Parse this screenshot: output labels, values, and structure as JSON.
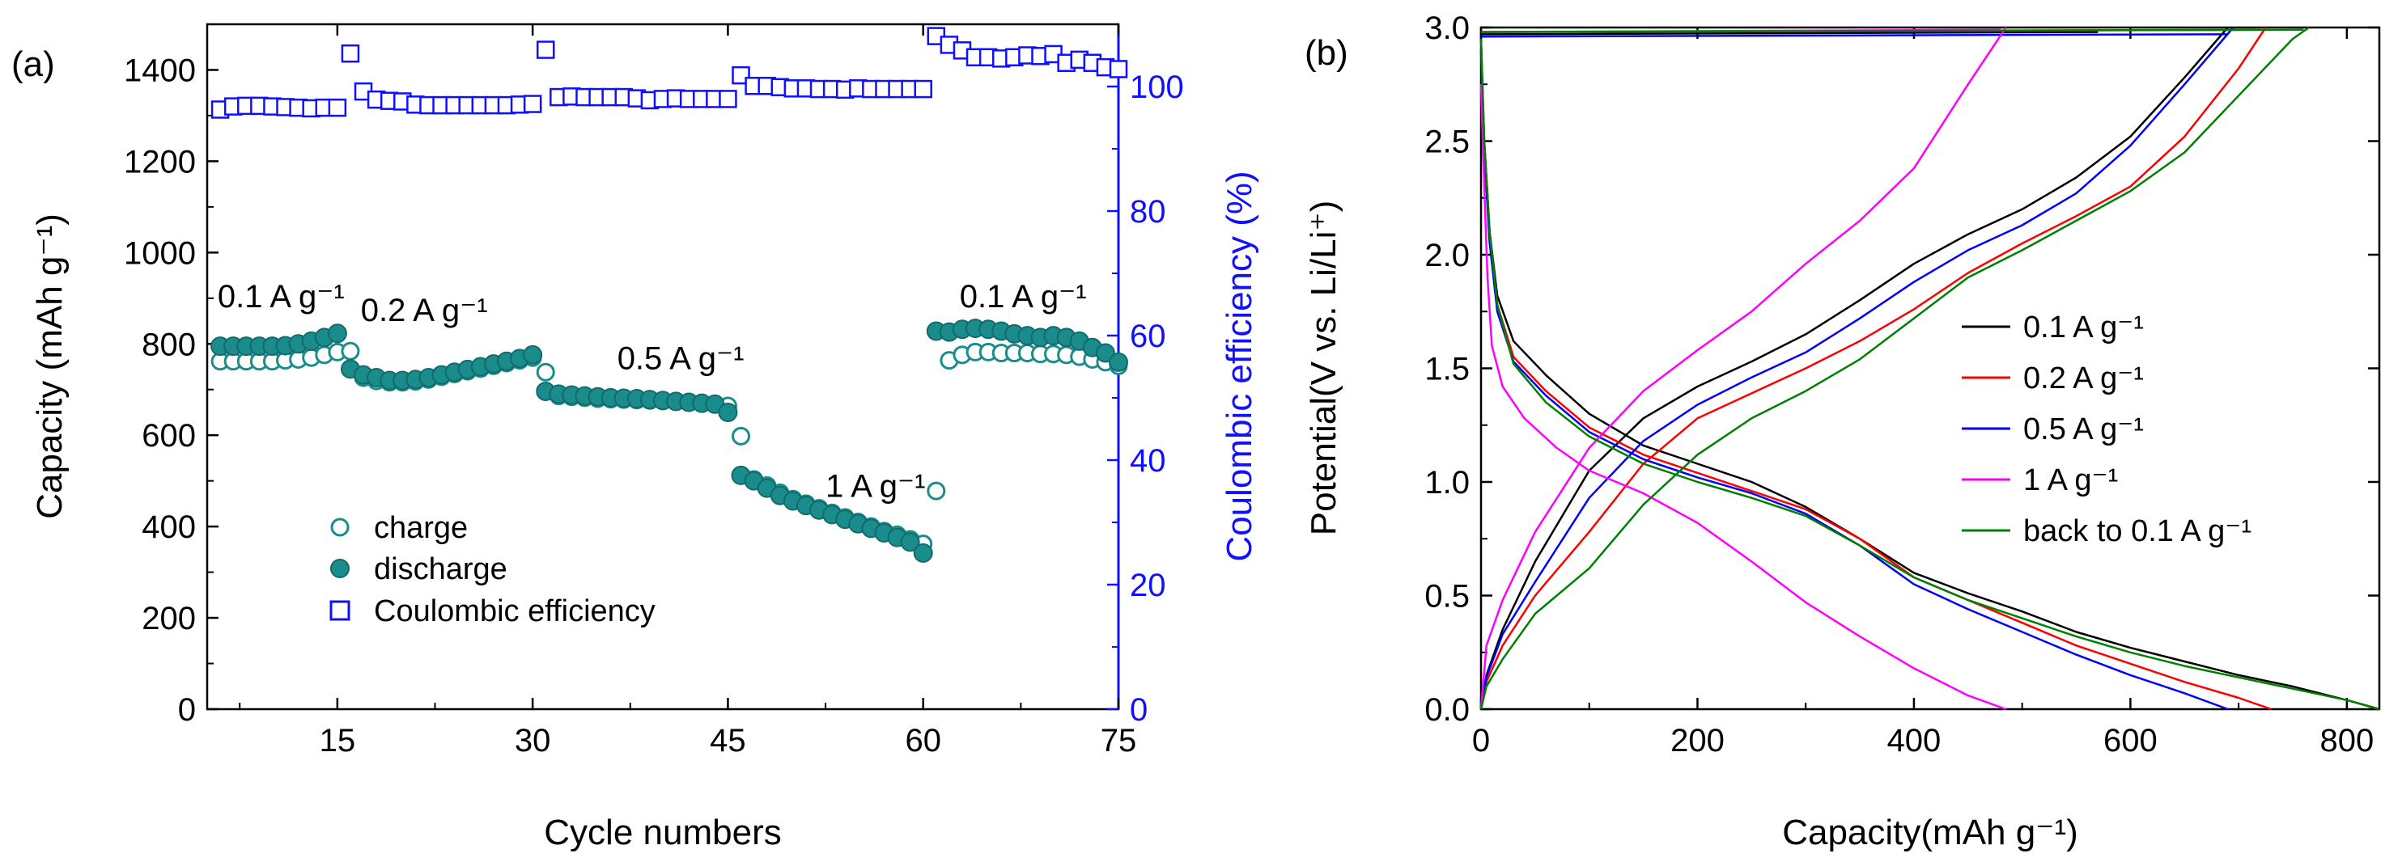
{
  "chart_data": [
    {
      "type": "scatter",
      "panel_label": "(a)",
      "title": "",
      "xlabel": "Cycle numbers",
      "ylabel": "Capacity (mAh g⁻¹)",
      "ylabel_right": "Coulombic efficiency (%)",
      "xlim": [
        5,
        75
      ],
      "ylim": [
        0,
        1500
      ],
      "ylim_right": [
        0,
        110
      ],
      "xticks": [
        "15",
        "30",
        "45",
        "60",
        "75"
      ],
      "xtick_values": [
        15,
        30,
        45,
        60,
        75
      ],
      "yticks": [
        "0",
        "200",
        "400",
        "600",
        "800",
        "1000",
        "1200",
        "1400"
      ],
      "ytick_values": [
        0,
        200,
        400,
        600,
        800,
        1000,
        1200,
        1400
      ],
      "yticks_right": [
        "0",
        "20",
        "40",
        "60",
        "80",
        "100"
      ],
      "ytick_values_right": [
        0,
        20,
        40,
        60,
        80,
        100
      ],
      "legend_position": "lower-left",
      "annotations": [
        {
          "text": "0.1 A g⁻¹",
          "x": 5.8,
          "y": 880
        },
        {
          "text": "0.2 A g⁻¹",
          "x": 16.8,
          "y": 850
        },
        {
          "text": "0.5 A g⁻¹",
          "x": 36.5,
          "y": 745
        },
        {
          "text": "1 A g⁻¹",
          "x": 52.5,
          "y": 465
        },
        {
          "text": "0.1 A g⁻¹",
          "x": 62.8,
          "y": 880
        }
      ],
      "x": [
        6,
        7,
        8,
        9,
        10,
        11,
        12,
        13,
        14,
        15,
        16,
        17,
        18,
        19,
        20,
        21,
        22,
        23,
        24,
        25,
        26,
        27,
        28,
        29,
        30,
        31,
        32,
        33,
        34,
        35,
        36,
        37,
        38,
        39,
        40,
        41,
        42,
        43,
        44,
        45,
        46,
        47,
        48,
        49,
        50,
        51,
        52,
        53,
        54,
        55,
        56,
        57,
        58,
        59,
        60,
        61,
        62,
        63,
        64,
        65,
        66,
        67,
        68,
        69,
        70,
        71,
        72,
        73,
        74,
        75
      ],
      "series": [
        {
          "name": "charge",
          "axis": "left",
          "marker": "open-circle",
          "color": "#1a8c8c",
          "values": [
            762,
            762,
            762,
            762,
            762,
            764,
            766,
            770,
            776,
            782,
            784,
            726,
            719,
            716,
            716,
            718,
            722,
            728,
            734,
            740,
            746,
            752,
            758,
            764,
            770,
            738,
            686,
            684,
            682,
            680,
            679,
            678,
            677,
            676,
            675,
            674,
            672,
            670,
            668,
            664,
            598,
            503,
            490,
            474,
            460,
            450,
            440,
            430,
            420,
            410,
            400,
            390,
            382,
            372,
            362,
            478,
            764,
            776,
            782,
            782,
            780,
            780,
            780,
            778,
            778,
            776,
            772,
            766,
            760,
            752
          ]
        },
        {
          "name": "discharge",
          "axis": "left",
          "marker": "filled-circle",
          "color": "#1a8c8c",
          "values": [
            795,
            795,
            795,
            795,
            795,
            796,
            800,
            806,
            814,
            823,
            745,
            732,
            726,
            720,
            720,
            722,
            726,
            732,
            738,
            744,
            750,
            756,
            762,
            768,
            776,
            696,
            690,
            688,
            686,
            684,
            682,
            681,
            680,
            678,
            676,
            674,
            672,
            670,
            668,
            650,
            512,
            500,
            484,
            468,
            456,
            446,
            436,
            426,
            416,
            406,
            396,
            386,
            376,
            366,
            342,
            828,
            826,
            832,
            834,
            832,
            828,
            822,
            818,
            814,
            818,
            814,
            806,
            792,
            780,
            760
          ]
        },
        {
          "name": "Coulombic efficiency",
          "axis": "right",
          "marker": "open-square",
          "color": "#1010ff",
          "values": [
            96.3,
            96.8,
            96.9,
            96.9,
            96.8,
            96.7,
            96.6,
            96.5,
            96.6,
            96.6,
            105.3,
            99.2,
            97.9,
            97.7,
            97.6,
            97.1,
            97.0,
            97.0,
            97.0,
            97.0,
            97.0,
            97.0,
            97.0,
            97.1,
            97.2,
            105.9,
            98.3,
            98.4,
            98.3,
            98.3,
            98.3,
            98.3,
            98.1,
            97.8,
            98.0,
            98.1,
            98.0,
            98.0,
            98.0,
            98.0,
            101.8,
            100.1,
            100.1,
            99.9,
            99.7,
            99.7,
            99.6,
            99.6,
            99.5,
            99.7,
            99.6,
            99.6,
            99.6,
            99.6,
            99.6,
            108.1,
            106.7,
            105.8,
            104.7,
            104.7,
            104.5,
            104.7,
            105.0,
            104.9,
            105.2,
            103.8,
            104.3,
            103.8,
            103.1,
            102.8
          ]
        }
      ]
    },
    {
      "type": "line",
      "panel_label": "(b)",
      "title": "",
      "xlabel": "Capacity(mAh g⁻¹)",
      "ylabel": "Potential(V vs. Li/Li⁺)",
      "xlim": [
        0,
        830
      ],
      "ylim": [
        0,
        3.0
      ],
      "xticks": [
        "0",
        "200",
        "400",
        "600",
        "800"
      ],
      "xtick_values": [
        0,
        200,
        400,
        600,
        800
      ],
      "yticks": [
        "0.0",
        "0.5",
        "1.0",
        "1.5",
        "2.0",
        "2.5",
        "3.0"
      ],
      "ytick_values": [
        0,
        0.5,
        1.0,
        1.5,
        2.0,
        2.5,
        3.0
      ],
      "legend_position": "right",
      "series": [
        {
          "name": "0.1 A g⁻¹",
          "color": "#000000",
          "discharge": {
            "x": [
              0,
              3,
              8,
              15,
              30,
              60,
              100,
              150,
              200,
              250,
              300,
              350,
              400,
              450,
              500,
              550,
              600,
              650,
              700,
              750,
              800,
              830
            ],
            "y": [
              2.95,
              2.5,
              2.1,
              1.82,
              1.62,
              1.47,
              1.3,
              1.16,
              1.08,
              1.0,
              0.89,
              0.75,
              0.6,
              0.51,
              0.43,
              0.34,
              0.27,
              0.21,
              0.15,
              0.1,
              0.04,
              0.0
            ]
          },
          "charge": {
            "x": [
              0,
              5,
              20,
              50,
              100,
              150,
              200,
              250,
              300,
              350,
              400,
              450,
              500,
              550,
              600,
              650,
              690
            ],
            "y": [
              0.0,
              0.15,
              0.35,
              0.65,
              1.05,
              1.28,
              1.42,
              1.53,
              1.65,
              1.8,
              1.96,
              2.09,
              2.2,
              2.34,
              2.52,
              2.78,
              3.0
            ]
          },
          "top": {
            "x": [
              0,
              570
            ],
            "y": [
              2.97,
              2.98
            ]
          }
        },
        {
          "name": "0.2 A g⁻¹",
          "color": "#ff0000",
          "discharge": {
            "x": [
              0,
              3,
              8,
              15,
              30,
              60,
              100,
              150,
              200,
              250,
              300,
              350,
              400,
              450,
              500,
              550,
              600,
              650,
              700,
              730
            ],
            "y": [
              2.9,
              2.5,
              2.1,
              1.78,
              1.55,
              1.4,
              1.24,
              1.12,
              1.04,
              0.96,
              0.88,
              0.75,
              0.58,
              0.48,
              0.38,
              0.28,
              0.2,
              0.12,
              0.05,
              0.0
            ]
          },
          "charge": {
            "x": [
              0,
              5,
              20,
              50,
              100,
              150,
              200,
              250,
              300,
              350,
              400,
              450,
              500,
              550,
              600,
              650,
              700,
              725
            ],
            "y": [
              0.0,
              0.12,
              0.28,
              0.5,
              0.78,
              1.08,
              1.28,
              1.39,
              1.5,
              1.62,
              1.76,
              1.92,
              2.05,
              2.17,
              2.3,
              2.52,
              2.82,
              3.0
            ]
          },
          "top": {
            "x": [
              0,
              720
            ],
            "y": [
              2.98,
              2.99
            ]
          }
        },
        {
          "name": "0.5 A g⁻¹",
          "color": "#0000ff",
          "discharge": {
            "x": [
              0,
              3,
              8,
              15,
              30,
              60,
              100,
              150,
              200,
              250,
              300,
              350,
              400,
              450,
              500,
              550,
              600,
              650,
              690
            ],
            "y": [
              2.9,
              2.45,
              2.05,
              1.75,
              1.53,
              1.38,
              1.22,
              1.1,
              1.02,
              0.95,
              0.86,
              0.72,
              0.55,
              0.44,
              0.34,
              0.24,
              0.15,
              0.07,
              0.0
            ]
          },
          "charge": {
            "x": [
              0,
              5,
              20,
              50,
              100,
              150,
              200,
              250,
              300,
              350,
              400,
              450,
              500,
              550,
              600,
              650,
              695
            ],
            "y": [
              0.0,
              0.14,
              0.33,
              0.56,
              0.93,
              1.18,
              1.34,
              1.46,
              1.57,
              1.72,
              1.88,
              2.02,
              2.13,
              2.27,
              2.48,
              2.75,
              3.0
            ]
          },
          "top": {
            "x": [
              0,
              690
            ],
            "y": [
              2.96,
              2.97
            ]
          }
        },
        {
          "name": "1 A g⁻¹",
          "color": "#ff00ff",
          "discharge": {
            "x": [
              0,
              3,
              6,
              10,
              20,
              40,
              70,
              100,
              150,
              200,
              250,
              300,
              350,
              400,
              450,
              485
            ],
            "y": [
              2.75,
              2.3,
              1.9,
              1.6,
              1.42,
              1.28,
              1.15,
              1.05,
              0.95,
              0.82,
              0.65,
              0.47,
              0.32,
              0.18,
              0.06,
              0.0
            ]
          },
          "charge": {
            "x": [
              0,
              5,
              20,
              50,
              100,
              150,
              200,
              250,
              300,
              350,
              400,
              450,
              485
            ],
            "y": [
              0.0,
              0.28,
              0.48,
              0.78,
              1.15,
              1.4,
              1.58,
              1.75,
              1.96,
              2.15,
              2.38,
              2.75,
              3.0
            ]
          },
          "top": {
            "x": [
              0,
              480
            ],
            "y": [
              2.98,
              2.99
            ]
          }
        },
        {
          "name": "back to 0.1 A g⁻¹",
          "color": "#008000",
          "discharge": {
            "x": [
              0,
              3,
              8,
              15,
              30,
              60,
              100,
              150,
              200,
              250,
              300,
              350,
              400,
              450,
              500,
              550,
              600,
              650,
              700,
              750,
              800,
              830
            ],
            "y": [
              2.95,
              2.5,
              2.1,
              1.78,
              1.52,
              1.35,
              1.2,
              1.08,
              1.0,
              0.93,
              0.85,
              0.72,
              0.58,
              0.48,
              0.4,
              0.32,
              0.25,
              0.19,
              0.14,
              0.09,
              0.04,
              0.0
            ]
          },
          "charge": {
            "x": [
              0,
              5,
              20,
              50,
              100,
              150,
              200,
              250,
              300,
              350,
              400,
              450,
              500,
              550,
              600,
              650,
              700,
              750,
              765
            ],
            "y": [
              0.0,
              0.1,
              0.22,
              0.42,
              0.62,
              0.9,
              1.12,
              1.28,
              1.4,
              1.54,
              1.72,
              1.9,
              2.02,
              2.15,
              2.28,
              2.45,
              2.7,
              2.95,
              3.0
            ]
          },
          "top": {
            "x": [
              0,
              760
            ],
            "y": [
              2.98,
              2.99
            ]
          }
        }
      ]
    }
  ]
}
